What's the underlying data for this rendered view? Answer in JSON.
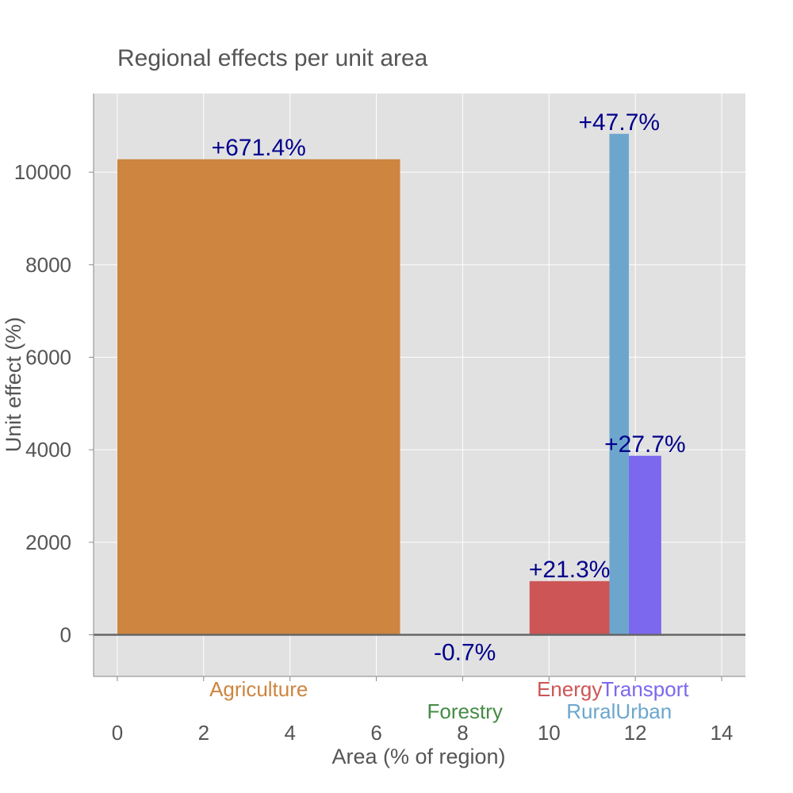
{
  "chart_data": {
    "type": "bar",
    "title": "Regional effects per unit area",
    "xlabel": "Area (% of region)",
    "ylabel": "Unit effect (%)",
    "xlim": [
      -0.55,
      14.55
    ],
    "ylim": [
      -900,
      11700
    ],
    "xticks": [
      0,
      2,
      4,
      6,
      8,
      10,
      12,
      14
    ],
    "yticks": [
      0,
      2000,
      4000,
      6000,
      8000,
      10000
    ],
    "grid": true,
    "background": "#e1e1e1",
    "bars": [
      {
        "category": "Agriculture",
        "x_start": 0.0,
        "x_end": 6.55,
        "value": 10280,
        "label": "+671.4%",
        "color": "#cd853f"
      },
      {
        "category": "Forestry",
        "x_start": 6.55,
        "x_end": 9.55,
        "value": -11,
        "label": "-0.7%",
        "color": "#458b45"
      },
      {
        "category": "Energy",
        "x_start": 9.55,
        "x_end": 11.4,
        "value": 1160,
        "label": "+21.3%",
        "color": "#cd5555"
      },
      {
        "category": "RuralUrban",
        "x_start": 11.4,
        "x_end": 11.85,
        "value": 10830,
        "label": "+47.7%",
        "color": "#6ca6cd"
      },
      {
        "category": "Transport",
        "x_start": 11.85,
        "x_end": 12.6,
        "value": 3870,
        "label": "+27.7%",
        "color": "#7b68ee"
      }
    ]
  }
}
